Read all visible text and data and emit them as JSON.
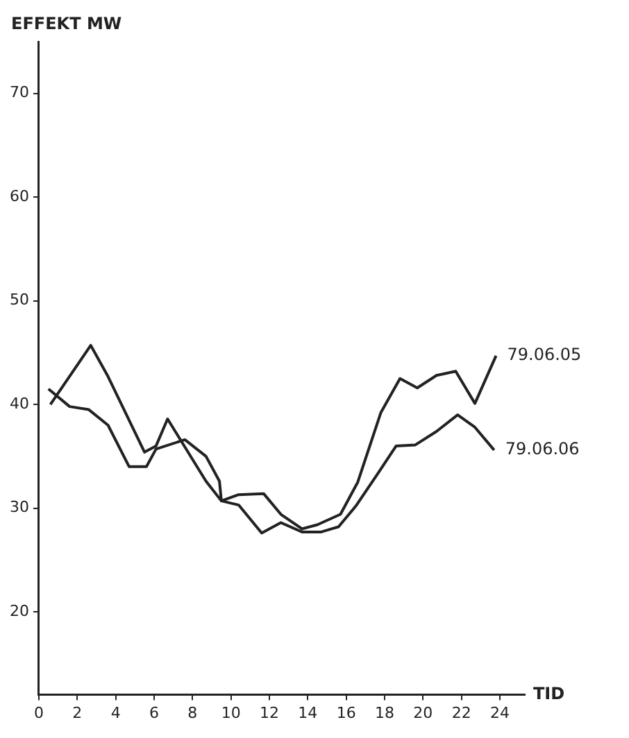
{
  "chart_data": {
    "type": "line",
    "xlabel": "TID",
    "ylabel": "EFFEKT MW",
    "xlim": [
      0,
      25.3
    ],
    "ylim": [
      12,
      75
    ],
    "xticks": [
      0,
      2,
      4,
      6,
      8,
      10,
      12,
      14,
      16,
      18,
      20,
      22,
      24
    ],
    "yticks": [
      20,
      30,
      40,
      50,
      60,
      70
    ],
    "grid": false,
    "legend": false,
    "marker": "none",
    "line_style": "solid",
    "series": [
      {
        "name": "79.06.05",
        "color": "#222222",
        "x": [
          0.6,
          2.7,
          3.6,
          5.5,
          6.1,
          6.7,
          8.7,
          9.5,
          10.4,
          11.7,
          12.6,
          13.7,
          14.5,
          15.7,
          16.6,
          17.8,
          18.8,
          19.7,
          20.7,
          21.7,
          22.7,
          23.8
        ],
        "values": [
          40,
          45.7,
          42.7,
          35.4,
          36,
          38.6,
          32.6,
          30.7,
          31.3,
          31.4,
          29.4,
          28,
          28.4,
          29.4,
          32.5,
          39.2,
          42.5,
          41.6,
          42.8,
          43.2,
          40.1,
          44.7
        ]
      },
      {
        "name": "79.06.06",
        "color": "#222222",
        "x": [
          0.5,
          1.6,
          2.6,
          3.6,
          4.7,
          5.6,
          6.1,
          7.6,
          8.7,
          9.4,
          9.5,
          10.4,
          11.6,
          12.6,
          13.7,
          14.7,
          15.6,
          16.5,
          17.6,
          18.6,
          19.6,
          20.7,
          21.8,
          22.7,
          23.7
        ],
        "values": [
          41.5,
          39.8,
          39.5,
          38,
          34,
          34,
          35.7,
          36.6,
          35,
          32.6,
          30.7,
          30.3,
          27.6,
          28.6,
          27.7,
          27.7,
          28.2,
          30.2,
          33.2,
          36,
          36.1,
          37.4,
          39,
          37.8,
          35.6
        ]
      }
    ]
  }
}
